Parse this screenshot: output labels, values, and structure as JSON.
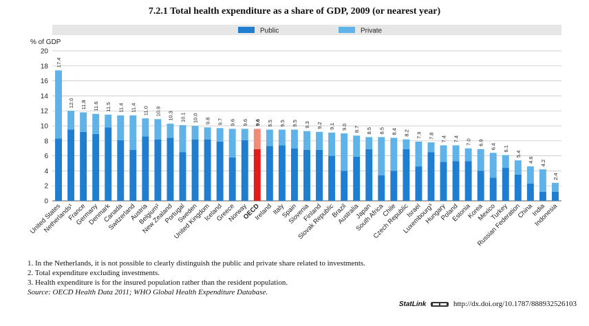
{
  "chart_data": {
    "type": "bar",
    "stacked": true,
    "title": "7.2.1  Total health expenditure as a share of GDP, 2009 (or nearest year)",
    "ylabel": "% of GDP",
    "ylim": [
      0,
      20
    ],
    "yticks": [
      "0",
      "2",
      "4",
      "6",
      "8",
      "10",
      "12",
      "14",
      "16",
      "18",
      "20"
    ],
    "grid": true,
    "legend_position": "top",
    "colors": {
      "public": "#1f7ed0",
      "private": "#5fb3e8",
      "oecd_public": "#e21b1b",
      "oecd_private": "#f08c78"
    },
    "legend": [
      "Public",
      "Private"
    ],
    "highlight_category": "OECD",
    "categories": [
      "United States",
      "Netherlands¹",
      "France",
      "Germany",
      "Denmark",
      "Canada",
      "Switzerland",
      "Austria",
      "Belgium²",
      "New Zealand",
      "Portugal",
      "Sweden",
      "United Kingdom",
      "Iceland",
      "Greece",
      "Norway",
      "OECD",
      "Ireland",
      "Italy",
      "Spain",
      "Slovenia",
      "Finland",
      "Slovak Republic",
      "Brazil",
      "Australia",
      "Japan",
      "South Africa",
      "Chile",
      "Czech Republic",
      "Israel",
      "Luxembourg³",
      "Hungary",
      "Poland",
      "Estonia",
      "Korea",
      "Mexico",
      "Turkey",
      "Russian Federation",
      "China",
      "India",
      "Indonesia"
    ],
    "totals": [
      "17.4",
      "12.0",
      "11.8",
      "11.6",
      "11.5",
      "11.4",
      "11.4",
      "11.0",
      "10.9",
      "10.3",
      "10.1",
      "10.0",
      "9.8",
      "9.7",
      "9.6",
      "9.6",
      "9.6",
      "9.5",
      "9.5",
      "9.5",
      "9.3",
      "9.2",
      "9.1",
      "9.0",
      "8.7",
      "8.5",
      "8.5",
      "8.4",
      "8.2",
      "7.9",
      "7.8",
      "7.4",
      "7.4",
      "7.0",
      "6.9",
      "6.4",
      "6.1",
      "5.4",
      "4.6",
      "4.2",
      "2.4"
    ],
    "series": [
      {
        "name": "Public",
        "values": [
          8.3,
          9.5,
          9.2,
          8.9,
          9.8,
          8.1,
          6.8,
          8.6,
          8.2,
          8.4,
          6.5,
          8.2,
          8.2,
          7.9,
          5.8,
          8.1,
          6.9,
          7.3,
          7.4,
          7.0,
          6.8,
          6.8,
          6.0,
          4.0,
          5.9,
          6.9,
          3.4,
          4.0,
          6.9,
          4.6,
          6.5,
          5.2,
          5.3,
          5.3,
          4.0,
          3.1,
          4.4,
          3.5,
          2.3,
          1.2,
          1.2
        ]
      },
      {
        "name": "Private",
        "values": [
          9.1,
          2.5,
          2.6,
          2.7,
          1.7,
          3.3,
          4.6,
          2.4,
          2.7,
          1.9,
          3.6,
          1.8,
          1.6,
          1.8,
          3.8,
          1.5,
          2.7,
          2.2,
          2.1,
          2.5,
          2.5,
          2.4,
          3.1,
          5.0,
          2.8,
          1.6,
          5.1,
          4.4,
          1.3,
          3.3,
          1.3,
          2.2,
          2.1,
          1.7,
          2.9,
          3.3,
          1.7,
          1.9,
          2.3,
          3.0,
          1.2
        ]
      }
    ]
  },
  "notes": [
    "1.  In the Netherlands, it is not possible to clearly distinguish the public and private share related to investments.",
    "2.  Total expenditure excluding investments.",
    "3.  Health expenditure is for the insured population rather than the resident population."
  ],
  "source": "Source:  OECD Health Data 2011; WHO Global Health Expenditure Database.",
  "statlink": {
    "label": "StatLink",
    "url": "http://dx.doi.org/10.1787/888932526103"
  }
}
